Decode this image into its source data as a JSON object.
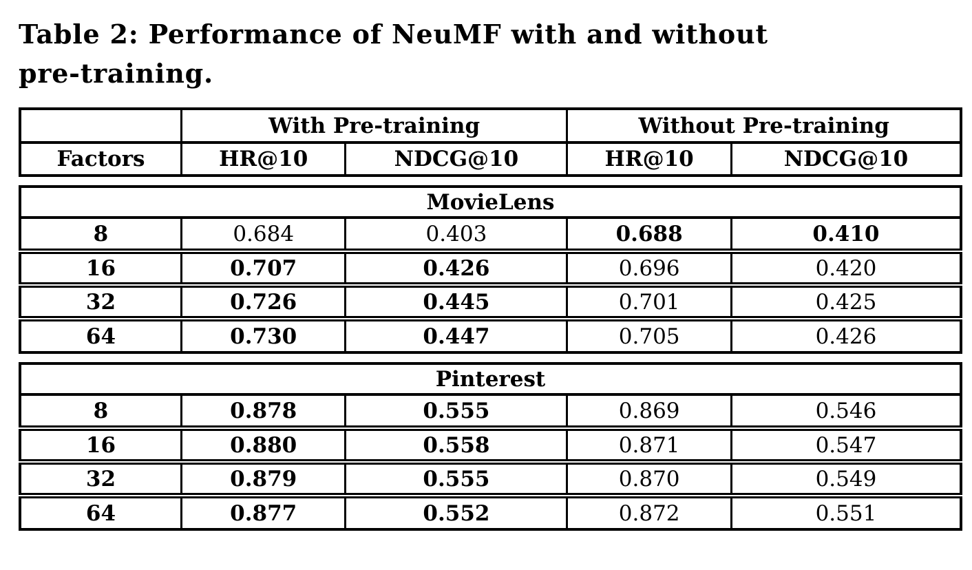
{
  "caption": {
    "line1": "Table 2: Performance of NeuMF with and without",
    "line2": "pre-training."
  },
  "table": {
    "group_headers": [
      "With Pre-training",
      "Without Pre-training"
    ],
    "column_headers": [
      "Factors",
      "HR@10",
      "NDCG@10",
      "HR@10",
      "NDCG@10"
    ],
    "sections": [
      {
        "name": "MovieLens",
        "rows": [
          {
            "cells": [
              {
                "t": "8",
                "b": true
              },
              {
                "t": "0.684",
                "b": false
              },
              {
                "t": "0.403",
                "b": false
              },
              {
                "t": "0.688",
                "b": true
              },
              {
                "t": "0.410",
                "b": true
              }
            ]
          },
          {
            "cells": [
              {
                "t": "16",
                "b": true
              },
              {
                "t": "0.707",
                "b": true
              },
              {
                "t": "0.426",
                "b": true
              },
              {
                "t": "0.696",
                "b": false
              },
              {
                "t": "0.420",
                "b": false
              }
            ]
          },
          {
            "cells": [
              {
                "t": "32",
                "b": true
              },
              {
                "t": "0.726",
                "b": true
              },
              {
                "t": "0.445",
                "b": true
              },
              {
                "t": "0.701",
                "b": false
              },
              {
                "t": "0.425",
                "b": false
              }
            ]
          },
          {
            "cells": [
              {
                "t": "64",
                "b": true
              },
              {
                "t": "0.730",
                "b": true
              },
              {
                "t": "0.447",
                "b": true
              },
              {
                "t": "0.705",
                "b": false
              },
              {
                "t": "0.426",
                "b": false
              }
            ]
          }
        ]
      },
      {
        "name": "Pinterest",
        "rows": [
          {
            "cells": [
              {
                "t": "8",
                "b": true
              },
              {
                "t": "0.878",
                "b": true
              },
              {
                "t": "0.555",
                "b": true
              },
              {
                "t": "0.869",
                "b": false
              },
              {
                "t": "0.546",
                "b": false
              }
            ]
          },
          {
            "cells": [
              {
                "t": "16",
                "b": true
              },
              {
                "t": "0.880",
                "b": true
              },
              {
                "t": "0.558",
                "b": true
              },
              {
                "t": "0.871",
                "b": false
              },
              {
                "t": "0.547",
                "b": false
              }
            ]
          },
          {
            "cells": [
              {
                "t": "32",
                "b": true
              },
              {
                "t": "0.879",
                "b": true
              },
              {
                "t": "0.555",
                "b": true
              },
              {
                "t": "0.870",
                "b": false
              },
              {
                "t": "0.549",
                "b": false
              }
            ]
          },
          {
            "cells": [
              {
                "t": "64",
                "b": true
              },
              {
                "t": "0.877",
                "b": true
              },
              {
                "t": "0.552",
                "b": true
              },
              {
                "t": "0.872",
                "b": false
              },
              {
                "t": "0.551",
                "b": false
              }
            ]
          }
        ]
      }
    ]
  },
  "colors": {
    "text": "#000000",
    "border": "#000000",
    "background": "#ffffff"
  }
}
